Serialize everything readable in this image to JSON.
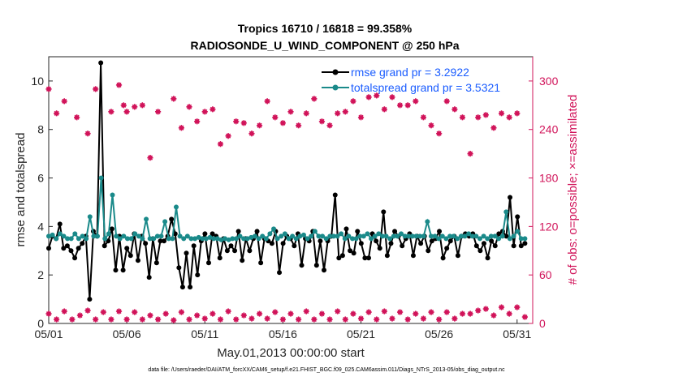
{
  "chart_data": {
    "type": "line",
    "title_line1": "Tropics 16710 / 16818 = 99.358%",
    "title_line2": "RADIOSONDE_U_WIND_COMPONENT @ 250 hPa",
    "xlabel": "May.01,2013 00:00:00 start",
    "ylabel_left": "rmse and totalspread",
    "ylabel_right": "# of obs: o=possible; ×=assimilated",
    "footer": "data file: /Users/raeder/DAI/ATM_forcXX/CAM6_setup/f.e21.FHIST_BGC.f09_025.CAM6assim.011/Diags_NTrS_2013-05/obs_diag_output.nc",
    "x_range": [
      1,
      32
    ],
    "ylim_left": [
      0,
      11
    ],
    "ylim_right": [
      0,
      330
    ],
    "x_ticks": [
      {
        "value": 1,
        "label": "05/01"
      },
      {
        "value": 6,
        "label": "05/06"
      },
      {
        "value": 11,
        "label": "05/11"
      },
      {
        "value": 16,
        "label": "05/16"
      },
      {
        "value": 21,
        "label": "05/21"
      },
      {
        "value": 26,
        "label": "05/26"
      },
      {
        "value": 31,
        "label": "05/31"
      }
    ],
    "y_ticks_left": [
      "0",
      "2",
      "4",
      "6",
      "8",
      "10"
    ],
    "y_ticks_right": [
      "0",
      "60",
      "120",
      "180",
      "240",
      "300"
    ],
    "colors": {
      "rmse": "#000000",
      "spread": "#1a8a8a",
      "obs": "#d1145a",
      "legend_text": "#1a5cff",
      "axis": "#262626"
    },
    "series": [
      {
        "name": "rmse grand pr = 3.2922",
        "axis": "left",
        "values": [
          3.1,
          3.6,
          3.5,
          4.1,
          3.1,
          3.2,
          3.0,
          2.7,
          3.1,
          3.3,
          3.6,
          1.0,
          3.8,
          3.6,
          10.75,
          3.2,
          3.4,
          3.9,
          2.2,
          3.6,
          2.2,
          3.1,
          2.8,
          3.7,
          2.6,
          3.6,
          3.3,
          1.9,
          3.5,
          2.5,
          3.4,
          3.4,
          3.6,
          4.3,
          3.7,
          2.3,
          1.5,
          2.9,
          1.5,
          3.2,
          2.0,
          3.4,
          3.7,
          2.5,
          3.7,
          3.6,
          2.7,
          3.5,
          3.0,
          3.2,
          3.0,
          3.8,
          2.6,
          3.5,
          3.0,
          3.5,
          3.8,
          2.5,
          3.5,
          3.4,
          3.3,
          3.8,
          2.1,
          3.3,
          3.6,
          3.5,
          3.2,
          3.7,
          2.4,
          3.5,
          3.4,
          3.8,
          2.4,
          3.4,
          2.2,
          3.4,
          3.6,
          5.3,
          2.7,
          2.8,
          3.9,
          3.0,
          2.9,
          3.8,
          3.3,
          2.7,
          2.7,
          3.7,
          3.4,
          3.1,
          4.6,
          2.8,
          3.3,
          3.8,
          3.6,
          3.2,
          3.5,
          3.7,
          2.8,
          3.6,
          3.3,
          3.6,
          3.0,
          3.4,
          3.5,
          3.8,
          2.7,
          3.1,
          3.4,
          3.6,
          2.8,
          3.6,
          3.7,
          3.6,
          3.7,
          3.2,
          3.0,
          3.3,
          2.7,
          3.4,
          3.2,
          3.7,
          3.8,
          3.6,
          5.2,
          3.2,
          4.4,
          3.2,
          3.3
        ]
      },
      {
        "name": "totalspread grand pr = 3.5321",
        "axis": "left",
        "values": [
          3.6,
          3.65,
          3.5,
          3.7,
          3.6,
          3.5,
          3.5,
          3.7,
          3.5,
          3.6,
          3.5,
          4.4,
          3.6,
          3.6,
          6.0,
          3.5,
          3.7,
          5.3,
          3.6,
          3.5,
          3.6,
          3.5,
          3.5,
          3.7,
          3.6,
          3.5,
          4.3,
          3.5,
          3.5,
          3.6,
          3.6,
          4.2,
          3.5,
          3.5,
          4.8,
          3.6,
          3.5,
          3.6,
          3.5,
          3.5,
          3.55,
          3.5,
          3.5,
          3.55,
          3.5,
          3.5,
          3.45,
          3.5,
          3.45,
          3.5,
          3.5,
          3.6,
          3.5,
          3.5,
          3.55,
          3.6,
          3.5,
          3.6,
          3.5,
          3.7,
          3.9,
          3.5,
          3.6,
          3.7,
          3.5,
          3.6,
          3.5,
          3.6,
          3.65,
          3.5,
          3.6,
          3.8,
          3.6,
          3.6,
          3.5,
          3.6,
          3.6,
          3.6,
          3.7,
          3.5,
          3.6,
          3.5,
          3.5,
          3.6,
          3.6,
          3.7,
          3.5,
          3.6,
          3.7,
          3.6,
          3.6,
          3.5,
          3.6,
          3.6,
          3.7,
          3.6,
          3.6,
          3.6,
          3.6,
          3.6,
          3.6,
          4.2,
          3.6,
          3.6,
          3.5,
          3.6,
          3.5,
          3.6,
          3.6,
          3.5,
          3.6,
          3.6,
          3.7,
          3.6,
          3.6,
          3.5,
          3.6,
          3.5,
          3.6,
          3.6,
          3.5,
          3.6,
          4.6,
          3.5,
          3.6,
          3.8,
          3.5,
          3.5
        ]
      }
    ],
    "obs_high": {
      "axis": "right",
      "x": [
        1.0,
        1.5,
        2.0,
        2.8,
        3.5,
        4.0,
        5.0,
        5.5,
        5.8,
        6.0,
        6.5,
        7.0,
        7.5,
        8.0,
        9.0,
        9.5,
        10.0,
        10.5,
        11.0,
        11.5,
        12.0,
        12.5,
        13.0,
        13.5,
        14.0,
        14.5,
        15.0,
        15.5,
        16.0,
        16.5,
        17.0,
        17.5,
        18.0,
        18.5,
        19.0,
        19.5,
        20.0,
        20.5,
        21.0,
        21.5,
        22.0,
        22.5,
        23.0,
        23.5,
        24.0,
        24.5,
        25.0,
        25.5,
        26.0,
        26.5,
        27.0,
        27.5,
        28.0,
        28.5,
        29.0,
        29.5,
        30.0,
        30.5,
        31.0
      ],
      "values": [
        290,
        260,
        275,
        255,
        235,
        290,
        262,
        295,
        270,
        262,
        268,
        270,
        205,
        262,
        278,
        242,
        268,
        250,
        262,
        265,
        222,
        232,
        250,
        248,
        235,
        245,
        275,
        255,
        248,
        262,
        245,
        260,
        278,
        250,
        245,
        260,
        262,
        275,
        255,
        280,
        282,
        265,
        280,
        270,
        270,
        275,
        255,
        245,
        235,
        275,
        265,
        255,
        210,
        255,
        258,
        242,
        260,
        255,
        260
      ]
    },
    "obs_low": {
      "axis": "right",
      "x": [
        1.0,
        1.5,
        2.0,
        2.5,
        3.0,
        3.5,
        4.0,
        4.5,
        5.0,
        5.5,
        6.0,
        6.5,
        7.0,
        7.5,
        8.0,
        8.5,
        9.0,
        9.5,
        10.0,
        10.5,
        11.0,
        11.5,
        12.0,
        12.5,
        13.0,
        13.5,
        14.0,
        14.5,
        15.0,
        15.5,
        16.0,
        16.5,
        17.0,
        17.5,
        18.0,
        18.5,
        19.0,
        19.5,
        20.0,
        20.5,
        21.0,
        21.5,
        22.0,
        22.5,
        23.0,
        23.5,
        24.0,
        24.5,
        25.0,
        25.5,
        26.0,
        26.5,
        27.0,
        27.5,
        28.0,
        28.5,
        29.0,
        29.5,
        30.0,
        30.5,
        31.0,
        31.5
      ],
      "values": [
        12,
        5,
        15,
        5,
        10,
        16,
        5,
        14,
        5,
        15,
        5,
        14,
        5,
        10,
        5,
        12,
        4,
        14,
        5,
        10,
        6,
        12,
        5,
        15,
        5,
        10,
        6,
        12,
        6,
        14,
        5,
        12,
        5,
        15,
        5,
        12,
        5,
        15,
        5,
        12,
        6,
        14,
        5,
        15,
        6,
        14,
        5,
        12,
        6,
        14,
        5,
        14,
        6,
        12,
        12,
        16,
        18,
        10,
        20,
        12,
        20,
        8
      ]
    }
  }
}
